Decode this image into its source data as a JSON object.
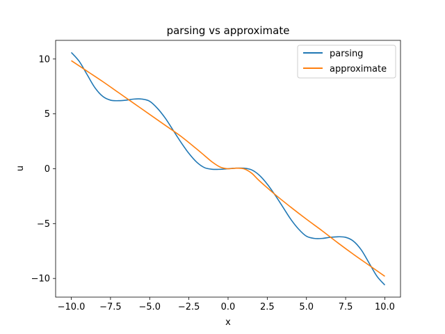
{
  "chart_data": {
    "type": "line",
    "title": "parsing vs approximate",
    "xlabel": "x",
    "ylabel": "u",
    "xlim": [
      -11,
      11
    ],
    "ylim": [
      -11.7,
      11.7
    ],
    "xticks": [
      -10.0,
      -7.5,
      -5.0,
      -2.5,
      0.0,
      2.5,
      5.0,
      7.5,
      10.0
    ],
    "xtick_labels": [
      "−10.0",
      "−7.5",
      "−5.0",
      "−2.5",
      "0.0",
      "2.5",
      "5.0",
      "7.5",
      "10.0"
    ],
    "yticks": [
      -10,
      -5,
      0,
      5,
      10
    ],
    "ytick_labels": [
      "−10",
      "−5",
      "0",
      "5",
      "10"
    ],
    "grid": false,
    "legend_position": "top-right",
    "series": [
      {
        "name": "parsing",
        "color": "#1f77b4",
        "x": [
          -10,
          -9.5,
          -9,
          -8.5,
          -8,
          -7.5,
          -7,
          -6.5,
          -6,
          -5.5,
          -5,
          -4.5,
          -4,
          -3.5,
          -3,
          -2.5,
          -2,
          -1.5,
          -1,
          -0.5,
          0,
          0.5,
          1,
          1.5,
          2,
          2.5,
          3,
          3.5,
          4,
          4.5,
          5,
          5.5,
          6,
          6.5,
          7,
          7.5,
          8,
          8.5,
          9,
          9.5,
          10
        ],
        "y": [
          10.6,
          9.8,
          8.6,
          7.4,
          6.6,
          6.25,
          6.2,
          6.25,
          6.35,
          6.35,
          6.15,
          5.5,
          4.6,
          3.5,
          2.4,
          1.4,
          0.6,
          0.1,
          -0.05,
          -0.05,
          0.0,
          0.05,
          0.05,
          -0.1,
          -0.6,
          -1.4,
          -2.4,
          -3.5,
          -4.6,
          -5.5,
          -6.15,
          -6.35,
          -6.35,
          -6.25,
          -6.2,
          -6.25,
          -6.6,
          -7.4,
          -8.6,
          -9.8,
          -10.6
        ]
      },
      {
        "name": "approximate",
        "color": "#ff7f0e",
        "x": [
          -10,
          -9,
          -8,
          -7,
          -6,
          -5,
          -4,
          -3,
          -2,
          -1.5,
          -1,
          -0.5,
          0,
          0.5,
          1,
          1.5,
          2,
          3,
          4,
          5,
          6,
          7,
          8,
          9,
          10
        ],
        "y": [
          9.85,
          8.9,
          7.95,
          6.95,
          5.95,
          4.95,
          3.95,
          2.95,
          1.8,
          1.2,
          0.6,
          0.15,
          0.0,
          0.05,
          0.0,
          -0.4,
          -1.1,
          -2.35,
          -3.5,
          -4.6,
          -5.65,
          -6.75,
          -7.8,
          -8.8,
          -9.8
        ]
      }
    ]
  }
}
